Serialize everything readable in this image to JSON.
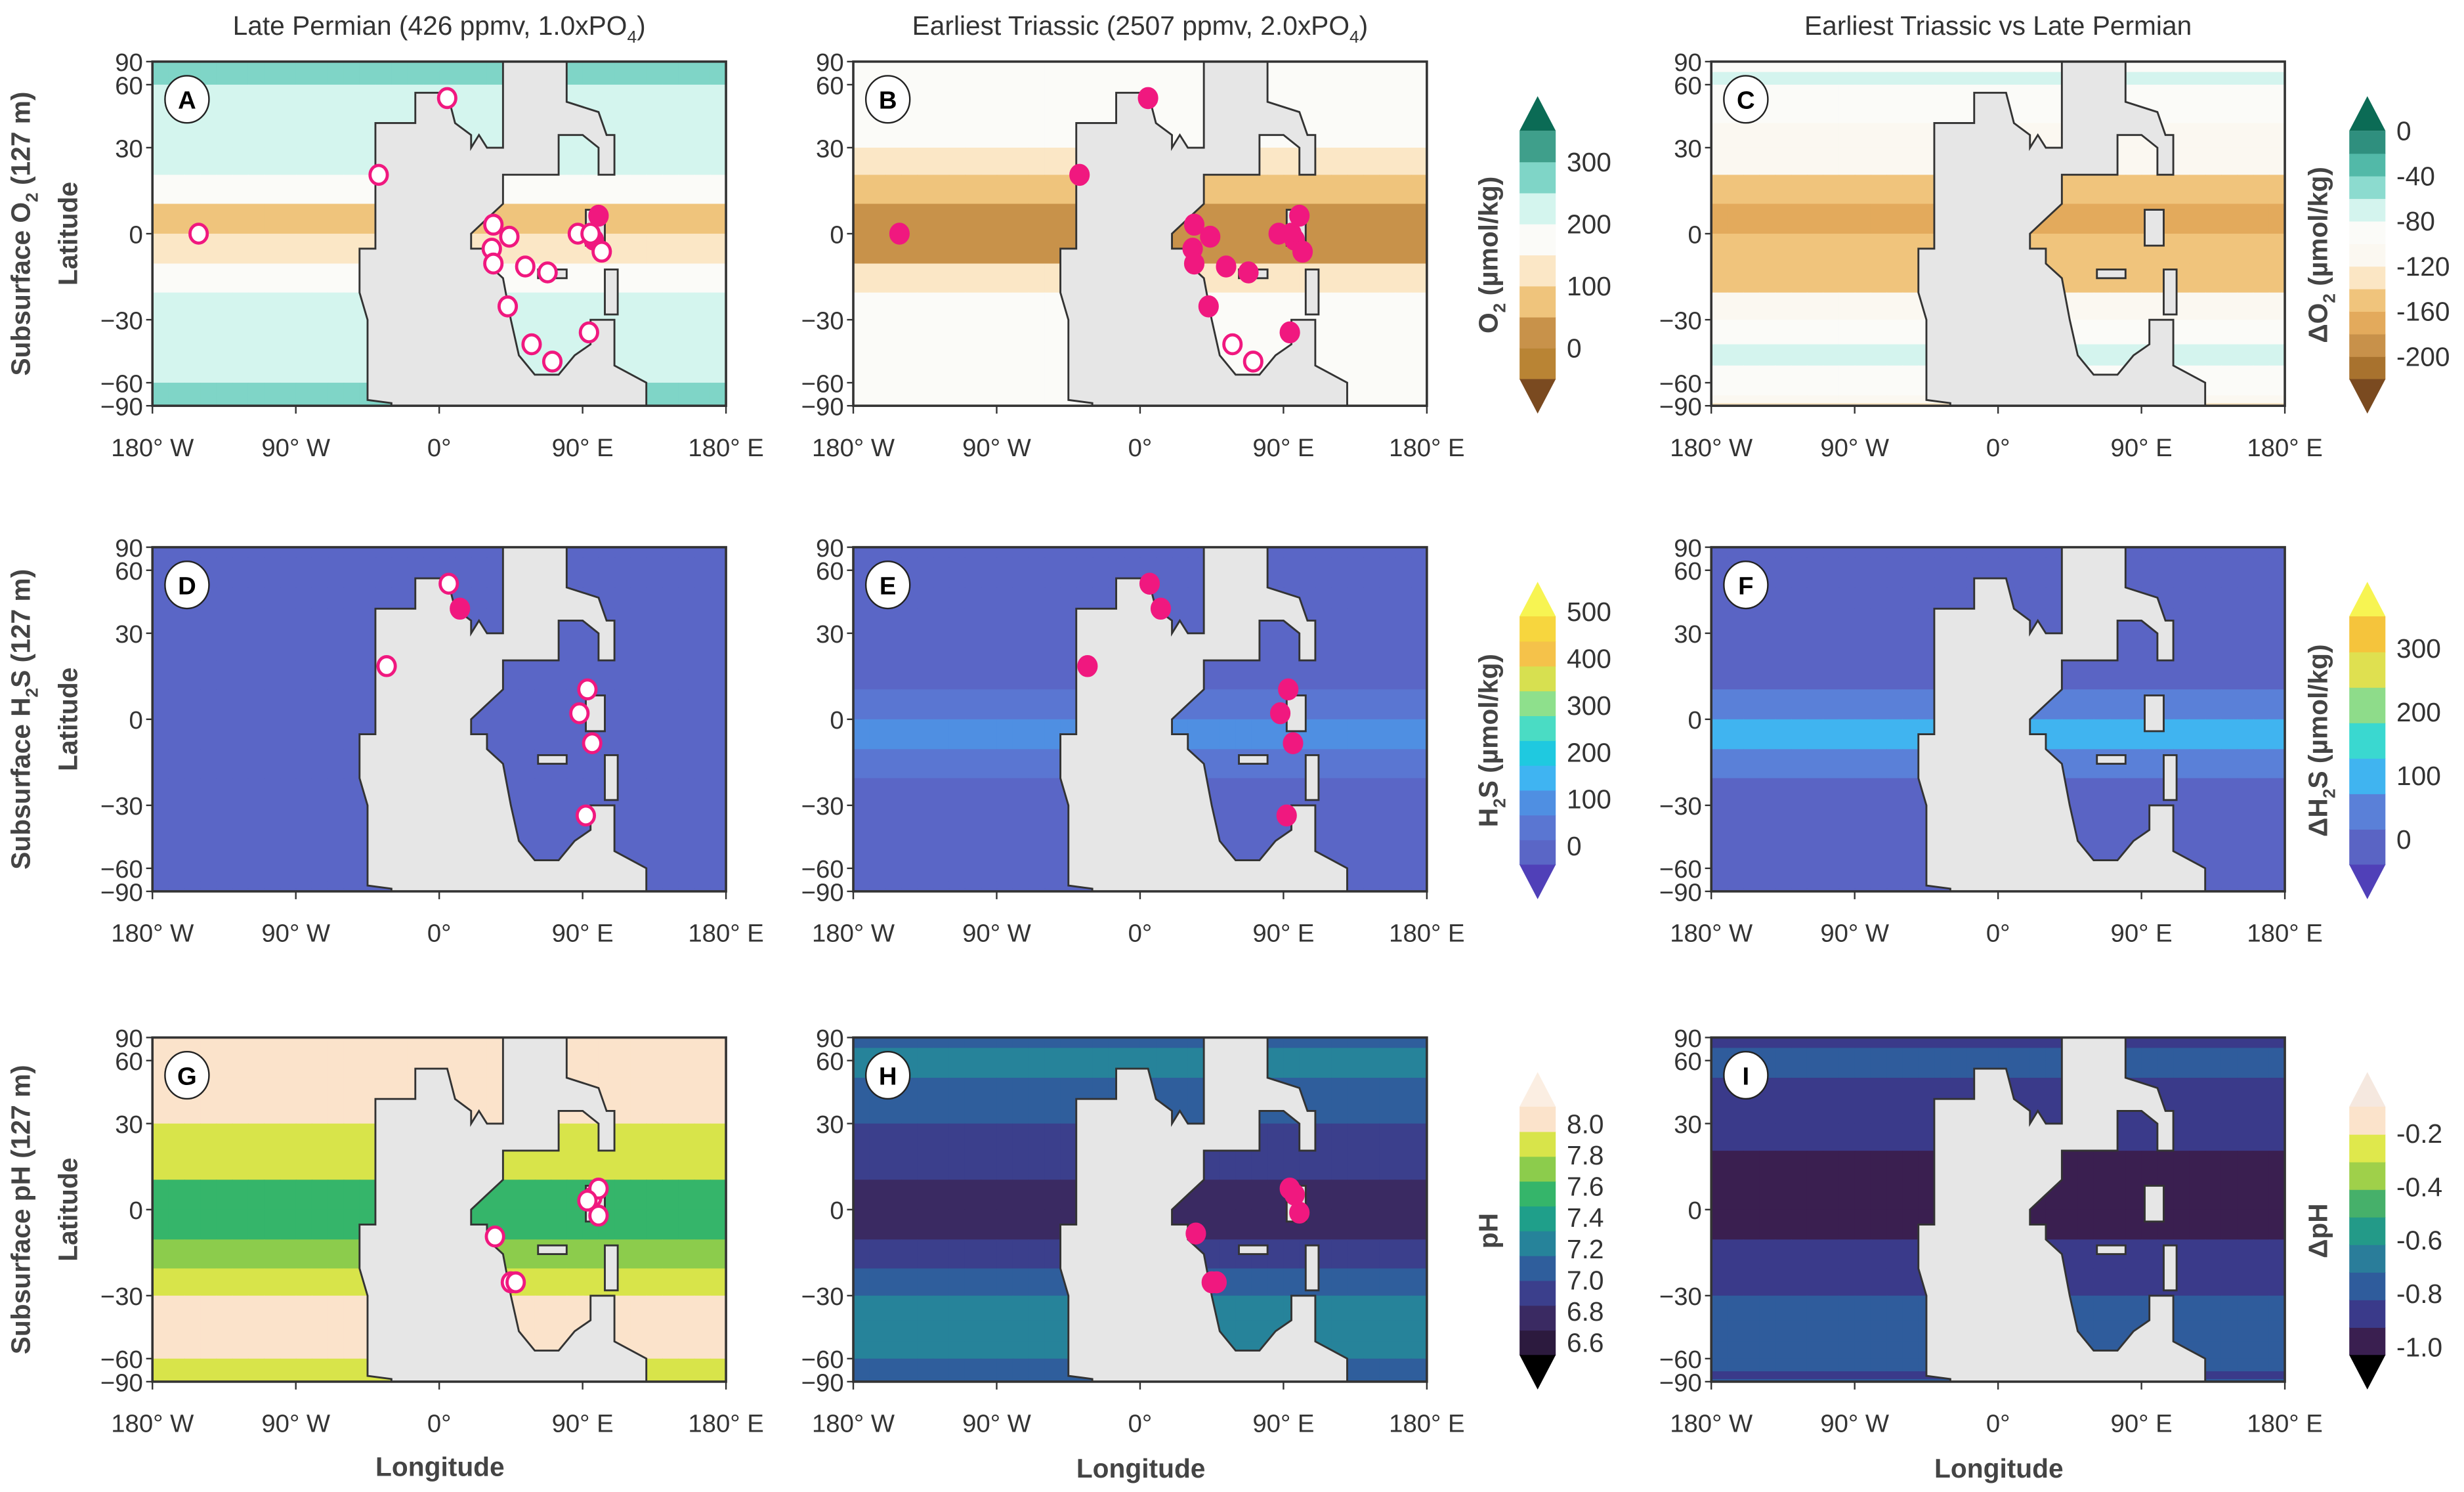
{
  "columns": [
    {
      "pre": "Late Permian (426 ppmv, 1.0xPO",
      "sub": "4",
      "post": ")"
    },
    {
      "pre": "Earliest Triassic (2507 ppmv, 2.0xPO",
      "sub": "4",
      "post": ")"
    },
    {
      "pre": "Earliest Triassic vs Late Permian",
      "sub": "",
      "post": ""
    }
  ],
  "rows": [
    {
      "pre": "Subsurface O",
      "sub": "2",
      "post": " (127 m)",
      "ylabel": "Latitude"
    },
    {
      "pre": "Subsurface H",
      "sub": "2",
      "post": "S (127 m)",
      "ylabel": "Latitude"
    },
    {
      "pre": "Subsurface pH (127 m)",
      "sub": "",
      "post": "",
      "ylabel": "Latitude"
    }
  ],
  "xlabel": "Longitude",
  "lat_ticks": [
    {
      "value": 90,
      "label": "90"
    },
    {
      "value": 60,
      "label": "60"
    },
    {
      "value": 30,
      "label": "30"
    },
    {
      "value": 0,
      "label": "0"
    },
    {
      "value": -30,
      "label": "−30"
    },
    {
      "value": -60,
      "label": "−60"
    },
    {
      "value": -90,
      "label": "−90"
    }
  ],
  "lon_ticks": [
    {
      "value": -180,
      "label": "180° W"
    },
    {
      "value": -90,
      "label": "90° W"
    },
    {
      "value": 0,
      "label": "0°"
    },
    {
      "value": 90,
      "label": "90° E"
    },
    {
      "value": 180,
      "label": "180° E"
    }
  ],
  "colors": {
    "land": "#e6e6e6",
    "coast": "#333333",
    "site": "#f0187f"
  },
  "colorbars": {
    "o2": {
      "pre": "O",
      "sub": "2",
      "post": " (µmol/kg)",
      "range": [
        -50,
        350
      ],
      "colors": [
        "#b98434",
        "#c8924a",
        "#efc47c",
        "#fbe7c6",
        "#fbfbf8",
        "#d4f5ee",
        "#7fd5c7",
        "#3f9f8b"
      ],
      "under": "#7a4a20",
      "over": "#0b6b55",
      "ticks": [
        {
          "value": 0,
          "label": "0"
        },
        {
          "value": 100,
          "label": "100"
        },
        {
          "value": 200,
          "label": "200"
        },
        {
          "value": 300,
          "label": "300"
        }
      ]
    },
    "do2": {
      "pre": "ΔO",
      "sub": "2",
      "post": " (µmol/kg)",
      "range": [
        -220,
        0
      ],
      "colors": [
        "#a8722e",
        "#c8914a",
        "#e3aa5c",
        "#f0c47c",
        "#fbe6c4",
        "#fbf8f1",
        "#fbfbf8",
        "#d4f4ee",
        "#8cdbcf",
        "#52b9a8",
        "#2f8f7e"
      ],
      "under": "#7a4a20",
      "over": "#0b6b55",
      "ticks": [
        {
          "value": -200,
          "label": "-200"
        },
        {
          "value": -160,
          "label": "-160"
        },
        {
          "value": -120,
          "label": "-120"
        },
        {
          "value": -80,
          "label": "-80"
        },
        {
          "value": -40,
          "label": "-40"
        },
        {
          "value": 0,
          "label": "0"
        }
      ]
    },
    "h2s": {
      "pre": "H",
      "sub": "2",
      "post": "S (µmol/kg)",
      "range": [
        -40,
        490
      ],
      "colors": [
        "#5a66c6",
        "#5a76d2",
        "#4f8fe2",
        "#3fb4f2",
        "#1fc9e0",
        "#4adcc4",
        "#8ee08c",
        "#d7e050",
        "#f5c24a",
        "#f7d63e"
      ],
      "under": "#5040b8",
      "over": "#f7f452",
      "ticks": [
        {
          "value": 0,
          "label": "0"
        },
        {
          "value": 100,
          "label": "100"
        },
        {
          "value": 200,
          "label": "200"
        },
        {
          "value": 300,
          "label": "300"
        },
        {
          "value": 400,
          "label": "400"
        },
        {
          "value": 500,
          "label": "500"
        }
      ]
    },
    "dh2s": {
      "pre": "ΔH",
      "sub": "2",
      "post": "S (µmol/kg)",
      "range": [
        -40,
        350
      ],
      "colors": [
        "#5a64c4",
        "#5a80d8",
        "#40b4f0",
        "#3ad8d0",
        "#8edc8a",
        "#dfe050",
        "#f5c43c"
      ],
      "under": "#5040b8",
      "over": "#f7f452",
      "ticks": [
        {
          "value": 0,
          "label": "0"
        },
        {
          "value": 100,
          "label": "100"
        },
        {
          "value": 200,
          "label": "200"
        },
        {
          "value": 300,
          "label": "300"
        }
      ]
    },
    "ph": {
      "pre": "pH",
      "sub": "",
      "post": "",
      "range": [
        6.52,
        8.11
      ],
      "colors": [
        "#2c1a3e",
        "#3a2a62",
        "#3b3f8c",
        "#2f5e9c",
        "#26839a",
        "#1f9f8a",
        "#35b56a",
        "#8ccc4c",
        "#d8e44a",
        "#fbe3cb"
      ],
      "under": "#000000",
      "over": "#fbeee2",
      "ticks": [
        {
          "value": 6.6,
          "label": "6.6"
        },
        {
          "value": 6.8,
          "label": "6.8"
        },
        {
          "value": 7.0,
          "label": "7.0"
        },
        {
          "value": 7.2,
          "label": "7.2"
        },
        {
          "value": 7.4,
          "label": "7.4"
        },
        {
          "value": 7.6,
          "label": "7.6"
        },
        {
          "value": 7.8,
          "label": "7.8"
        },
        {
          "value": 8.0,
          "label": "8.0"
        }
      ]
    },
    "dph": {
      "pre": "ΔpH",
      "sub": "",
      "post": "",
      "range": [
        -1.03,
        -0.1
      ],
      "colors": [
        "#3a1f50",
        "#3a3a8a",
        "#2f5c9c",
        "#2a7d9a",
        "#239a88",
        "#46b06a",
        "#9fd04a",
        "#dfe84c",
        "#fbe3cb"
      ],
      "under": "#000000",
      "over": "#f5e8df",
      "ticks": [
        {
          "value": -1.0,
          "label": "-1.0"
        },
        {
          "value": -0.8,
          "label": "-0.8"
        },
        {
          "value": -0.6,
          "label": "-0.6"
        },
        {
          "value": -0.4,
          "label": "-0.4"
        },
        {
          "value": -0.2,
          "label": "-0.2"
        }
      ]
    }
  },
  "chart_data": [
    {
      "type": "heatmap",
      "panel": "A",
      "colorbar": "o2",
      "zonal_lat_bands": [
        90,
        80,
        70,
        60,
        50,
        40,
        30,
        20,
        10,
        0,
        -10,
        -20,
        -30,
        -40,
        -50,
        -60,
        -70,
        -80
      ],
      "zonal_values": [
        270,
        270,
        250,
        230,
        220,
        215,
        205,
        160,
        90,
        110,
        170,
        210,
        220,
        220,
        230,
        260,
        270,
        285
      ],
      "sites": [
        {
          "lon": -151,
          "lat": 0,
          "filled": false
        },
        {
          "lon": -38,
          "lat": 20,
          "filled": false
        },
        {
          "lon": 5,
          "lat": 52,
          "filled": false
        },
        {
          "lon": 34,
          "lat": 3,
          "filled": false
        },
        {
          "lon": 33,
          "lat": -5,
          "filled": false
        },
        {
          "lon": 34,
          "lat": -10,
          "filled": false
        },
        {
          "lon": 44,
          "lat": -1,
          "filled": false
        },
        {
          "lon": 54,
          "lat": -11,
          "filled": false
        },
        {
          "lon": 68,
          "lat": -13,
          "filled": false
        },
        {
          "lon": 43,
          "lat": -25,
          "filled": false
        },
        {
          "lon": 58,
          "lat": -40,
          "filled": false
        },
        {
          "lon": 71,
          "lat": -48,
          "filled": false
        },
        {
          "lon": 87,
          "lat": 0,
          "filled": false
        },
        {
          "lon": 94,
          "lat": -35,
          "filled": false
        },
        {
          "lon": 100,
          "lat": 6,
          "filled": true
        },
        {
          "lon": 97,
          "lat": -2,
          "filled": true
        },
        {
          "lon": 102,
          "lat": -6,
          "filled": false
        },
        {
          "lon": 95,
          "lat": 0,
          "filled": false
        }
      ]
    },
    {
      "type": "heatmap",
      "panel": "B",
      "colorbar": "o2",
      "zonal_values": [
        190,
        185,
        175,
        170,
        165,
        160,
        130,
        60,
        20,
        25,
        100,
        170,
        180,
        170,
        170,
        170,
        165,
        160
      ],
      "sites": [
        {
          "lon": -151,
          "lat": 0,
          "filled": true
        },
        {
          "lon": -38,
          "lat": 20,
          "filled": true
        },
        {
          "lon": 5,
          "lat": 52,
          "filled": true
        },
        {
          "lon": 34,
          "lat": 3,
          "filled": true
        },
        {
          "lon": 33,
          "lat": -5,
          "filled": true
        },
        {
          "lon": 34,
          "lat": -10,
          "filled": true
        },
        {
          "lon": 44,
          "lat": -1,
          "filled": true
        },
        {
          "lon": 54,
          "lat": -11,
          "filled": true
        },
        {
          "lon": 68,
          "lat": -13,
          "filled": true
        },
        {
          "lon": 43,
          "lat": -25,
          "filled": true
        },
        {
          "lon": 58,
          "lat": -40,
          "filled": false
        },
        {
          "lon": 71,
          "lat": -48,
          "filled": false
        },
        {
          "lon": 87,
          "lat": 0,
          "filled": true
        },
        {
          "lon": 94,
          "lat": -35,
          "filled": true
        },
        {
          "lon": 100,
          "lat": 6,
          "filled": true
        },
        {
          "lon": 97,
          "lat": -2,
          "filled": true
        },
        {
          "lon": 102,
          "lat": -6,
          "filled": true
        },
        {
          "lon": 95,
          "lat": 0,
          "filled": true
        }
      ]
    },
    {
      "type": "heatmap",
      "panel": "C",
      "colorbar": "do2",
      "zonal_values": [
        -90,
        -90,
        -80,
        -85,
        -100,
        -110,
        -120,
        -150,
        -170,
        -160,
        -150,
        -120,
        -90,
        -80,
        -90,
        -100,
        -110,
        -130
      ],
      "sites": []
    },
    {
      "type": "heatmap",
      "panel": "D",
      "colorbar": "h2s",
      "zonal_values": [
        0,
        0,
        0,
        0,
        0,
        0,
        0,
        0,
        0,
        0,
        0,
        0,
        0,
        0,
        0,
        0,
        0,
        0
      ],
      "sites": [
        {
          "lon": -33,
          "lat": 18,
          "filled": false
        },
        {
          "lon": 6,
          "lat": 52,
          "filled": false
        },
        {
          "lon": 13,
          "lat": 40,
          "filled": true
        },
        {
          "lon": 93,
          "lat": 10,
          "filled": false
        },
        {
          "lon": 88,
          "lat": 2,
          "filled": false
        },
        {
          "lon": 96,
          "lat": -8,
          "filled": false
        },
        {
          "lon": 92,
          "lat": -34,
          "filled": false
        }
      ]
    },
    {
      "type": "heatmap",
      "panel": "E",
      "colorbar": "h2s",
      "zonal_values": [
        0,
        0,
        0,
        0,
        0,
        0,
        0,
        0,
        40,
        110,
        60,
        0,
        0,
        0,
        0,
        0,
        0,
        0
      ],
      "sites": [
        {
          "lon": -33,
          "lat": 18,
          "filled": true
        },
        {
          "lon": 6,
          "lat": 52,
          "filled": true
        },
        {
          "lon": 13,
          "lat": 40,
          "filled": true
        },
        {
          "lon": 93,
          "lat": 10,
          "filled": true
        },
        {
          "lon": 88,
          "lat": 2,
          "filled": true
        },
        {
          "lon": 96,
          "lat": -8,
          "filled": true
        },
        {
          "lon": 92,
          "lat": -34,
          "filled": true
        }
      ]
    },
    {
      "type": "heatmap",
      "panel": "F",
      "colorbar": "dh2s",
      "zonal_values": [
        0,
        0,
        0,
        0,
        0,
        0,
        0,
        0,
        50,
        120,
        70,
        0,
        0,
        0,
        0,
        0,
        0,
        0
      ],
      "sites": []
    },
    {
      "type": "heatmap",
      "panel": "G",
      "colorbar": "ph",
      "zonal_values": [
        8.05,
        8.05,
        8.05,
        8.0,
        8.05,
        8.05,
        7.95,
        7.85,
        7.6,
        7.5,
        7.7,
        7.95,
        8.05,
        8.05,
        8.05,
        7.95,
        7.85,
        7.95
      ],
      "sites": [
        {
          "lon": 35,
          "lat": -9,
          "filled": false
        },
        {
          "lon": 45,
          "lat": -25,
          "filled": false
        },
        {
          "lon": 48,
          "lat": -25,
          "filled": false
        },
        {
          "lon": 96,
          "lat": 4,
          "filled": false
        },
        {
          "lon": 100,
          "lat": 7,
          "filled": false
        },
        {
          "lon": 100,
          "lat": -2,
          "filled": false
        },
        {
          "lon": 93,
          "lat": 3,
          "filled": false
        }
      ]
    },
    {
      "type": "heatmap",
      "panel": "H",
      "colorbar": "ph",
      "zonal_values": [
        7.15,
        7.1,
        7.2,
        7.25,
        7.1,
        7.05,
        6.95,
        6.85,
        6.75,
        6.75,
        6.85,
        7.0,
        7.25,
        7.3,
        7.2,
        7.1,
        7.05,
        7.15
      ],
      "sites": [
        {
          "lon": 35,
          "lat": -8,
          "filled": true
        },
        {
          "lon": 45,
          "lat": -25,
          "filled": true
        },
        {
          "lon": 48,
          "lat": -25,
          "filled": true
        },
        {
          "lon": 94,
          "lat": 7,
          "filled": true
        },
        {
          "lon": 100,
          "lat": -1,
          "filled": true
        },
        {
          "lon": 97,
          "lat": 5,
          "filled": true
        }
      ]
    },
    {
      "type": "heatmap",
      "panel": "I",
      "colorbar": "dph",
      "zonal_values": [
        -0.85,
        -0.85,
        -0.8,
        -0.8,
        -0.85,
        -0.88,
        -0.9,
        -0.95,
        -0.97,
        -0.97,
        -0.92,
        -0.87,
        -0.8,
        -0.75,
        -0.8,
        -0.8,
        -0.85,
        -0.8
      ],
      "sites": []
    }
  ]
}
